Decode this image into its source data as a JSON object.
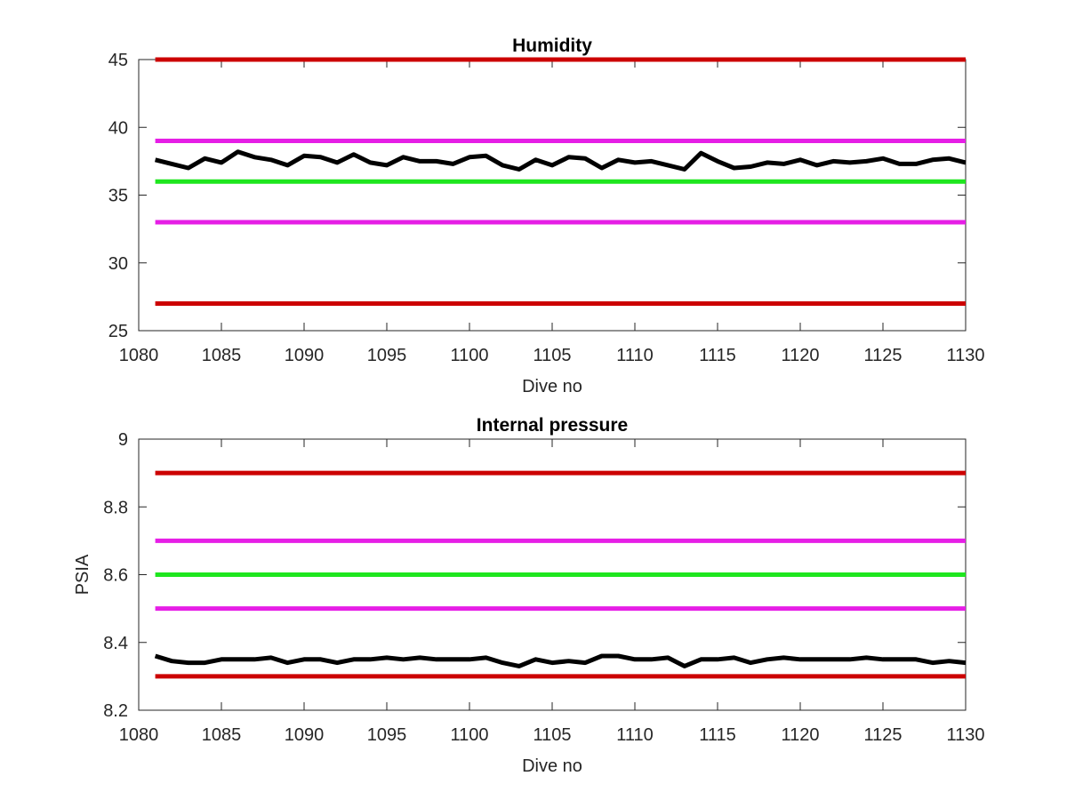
{
  "chart_data": [
    {
      "type": "line",
      "title": "Humidity",
      "xlabel": "Dive no",
      "ylabel": "",
      "xlim": [
        1080,
        1130
      ],
      "ylim": [
        25,
        45
      ],
      "xticks": [
        1080,
        1085,
        1090,
        1095,
        1100,
        1105,
        1110,
        1115,
        1120,
        1125,
        1130
      ],
      "yticks": [
        25,
        30,
        35,
        40,
        45
      ],
      "grid": false,
      "x": [
        1081,
        1082,
        1083,
        1084,
        1085,
        1086,
        1087,
        1088,
        1089,
        1090,
        1091,
        1092,
        1093,
        1094,
        1095,
        1096,
        1097,
        1098,
        1099,
        1100,
        1101,
        1102,
        1103,
        1104,
        1105,
        1106,
        1107,
        1108,
        1109,
        1110,
        1111,
        1112,
        1113,
        1114,
        1115,
        1116,
        1117,
        1118,
        1119,
        1120,
        1121,
        1122,
        1123,
        1124,
        1125,
        1126,
        1127,
        1128,
        1129,
        1130
      ],
      "series": [
        {
          "values": [
            37.6,
            37.3,
            37.0,
            37.7,
            37.4,
            38.2,
            37.8,
            37.6,
            37.2,
            37.9,
            37.8,
            37.4,
            38.0,
            37.4,
            37.2,
            37.8,
            37.5,
            37.5,
            37.3,
            37.8,
            37.9,
            37.2,
            36.9,
            37.6,
            37.2,
            37.8,
            37.7,
            37.0,
            37.6,
            37.4,
            37.5,
            37.2,
            36.9,
            38.1,
            37.5,
            37.0,
            37.1,
            37.4,
            37.3,
            37.6,
            37.2,
            37.5,
            37.4,
            37.5,
            37.7,
            37.3,
            37.3,
            37.6,
            37.7,
            37.4
          ],
          "color": "#000000"
        }
      ],
      "reference_lines": [
        {
          "y": 45,
          "color": "#cc0000"
        },
        {
          "y": 39,
          "color": "#e61ee6"
        },
        {
          "y": 36,
          "color": "#1ee61e"
        },
        {
          "y": 33,
          "color": "#e61ee6"
        },
        {
          "y": 27,
          "color": "#cc0000"
        }
      ]
    },
    {
      "type": "line",
      "title": "Internal pressure",
      "xlabel": "Dive no",
      "ylabel": "PSIA",
      "xlim": [
        1080,
        1130
      ],
      "ylim": [
        8.2,
        9
      ],
      "xticks": [
        1080,
        1085,
        1090,
        1095,
        1100,
        1105,
        1110,
        1115,
        1120,
        1125,
        1130
      ],
      "yticks": [
        8.2,
        8.4,
        8.6,
        8.8,
        9
      ],
      "grid": false,
      "x": [
        1081,
        1082,
        1083,
        1084,
        1085,
        1086,
        1087,
        1088,
        1089,
        1090,
        1091,
        1092,
        1093,
        1094,
        1095,
        1096,
        1097,
        1098,
        1099,
        1100,
        1101,
        1102,
        1103,
        1104,
        1105,
        1106,
        1107,
        1108,
        1109,
        1110,
        1111,
        1112,
        1113,
        1114,
        1115,
        1116,
        1117,
        1118,
        1119,
        1120,
        1121,
        1122,
        1123,
        1124,
        1125,
        1126,
        1127,
        1128,
        1129,
        1130
      ],
      "series": [
        {
          "values": [
            8.36,
            8.345,
            8.34,
            8.34,
            8.35,
            8.35,
            8.35,
            8.355,
            8.34,
            8.35,
            8.35,
            8.34,
            8.35,
            8.35,
            8.355,
            8.35,
            8.355,
            8.35,
            8.35,
            8.35,
            8.355,
            8.34,
            8.33,
            8.35,
            8.34,
            8.345,
            8.34,
            8.36,
            8.36,
            8.35,
            8.35,
            8.355,
            8.33,
            8.35,
            8.35,
            8.355,
            8.34,
            8.35,
            8.355,
            8.35,
            8.35,
            8.35,
            8.35,
            8.355,
            8.35,
            8.35,
            8.35,
            8.34,
            8.345,
            8.34
          ],
          "color": "#000000"
        }
      ],
      "reference_lines": [
        {
          "y": 8.9,
          "color": "#cc0000"
        },
        {
          "y": 8.7,
          "color": "#e61ee6"
        },
        {
          "y": 8.6,
          "color": "#1ee61e"
        },
        {
          "y": 8.5,
          "color": "#e61ee6"
        },
        {
          "y": 8.3,
          "color": "#cc0000"
        }
      ]
    }
  ]
}
